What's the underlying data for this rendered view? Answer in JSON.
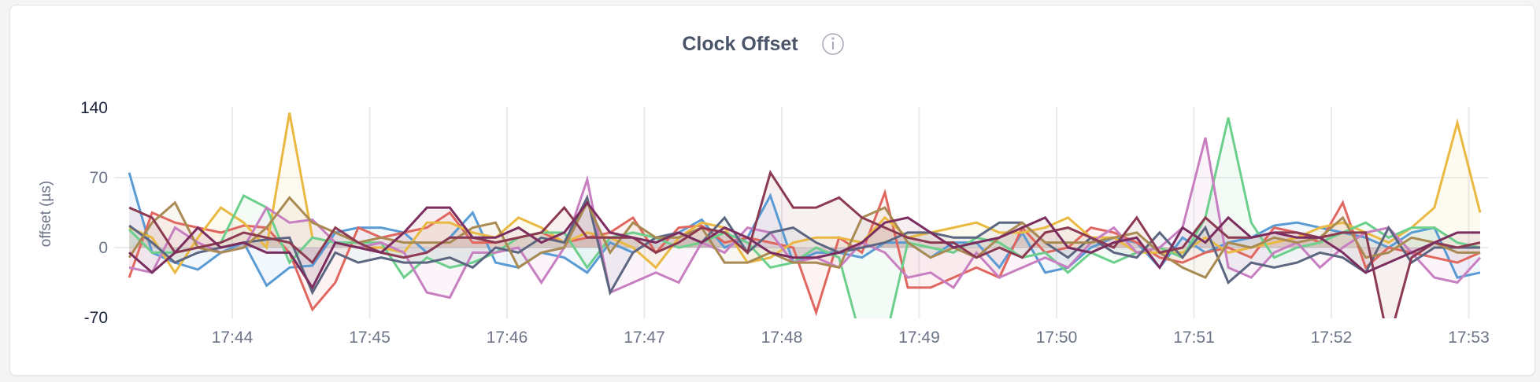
{
  "title": "Clock Offset",
  "info_icon": "info-circle-icon",
  "chart_data": {
    "type": "area",
    "title": "Clock Offset",
    "xlabel": "",
    "ylabel": "offset (µs)",
    "ylim": [
      -70,
      140
    ],
    "yticks": [
      "140",
      "70",
      "0",
      "-70"
    ],
    "xticks": [
      "17:44",
      "17:45",
      "17:46",
      "17:47",
      "17:48",
      "17:49",
      "17:50",
      "17:51",
      "17:52",
      "17:53"
    ],
    "grid": true,
    "legend": "none",
    "x": [
      "17:43:15",
      "17:43:25",
      "17:43:35",
      "17:43:45",
      "17:43:55",
      "17:44:05",
      "17:44:15",
      "17:44:25",
      "17:44:35",
      "17:44:45",
      "17:44:55",
      "17:45:05",
      "17:45:15",
      "17:45:25",
      "17:45:35",
      "17:45:45",
      "17:45:55",
      "17:46:05",
      "17:46:15",
      "17:46:25",
      "17:46:35",
      "17:46:45",
      "17:46:55",
      "17:47:05",
      "17:47:15",
      "17:47:25",
      "17:47:35",
      "17:47:45",
      "17:47:55",
      "17:48:05",
      "17:48:15",
      "17:48:25",
      "17:48:35",
      "17:48:45",
      "17:48:55",
      "17:49:05",
      "17:49:15",
      "17:49:25",
      "17:49:35",
      "17:49:45",
      "17:49:55",
      "17:50:05",
      "17:50:15",
      "17:50:25",
      "17:50:35",
      "17:50:45",
      "17:50:55",
      "17:51:05",
      "17:51:15",
      "17:51:25",
      "17:51:35",
      "17:51:45",
      "17:51:55",
      "17:52:05",
      "17:52:15",
      "17:52:25",
      "17:52:35",
      "17:52:45",
      "17:52:55",
      "17:53:05"
    ],
    "series": [
      {
        "color": "#5a9bd4",
        "values": [
          75,
          -5,
          -15,
          -22,
          -5,
          5,
          -38,
          -20,
          -18,
          15,
          20,
          20,
          15,
          -5,
          10,
          35,
          -15,
          -20,
          -5,
          -10,
          -25,
          5,
          -5,
          10,
          15,
          28,
          0,
          10,
          52,
          -15,
          -5,
          -5,
          -10,
          5,
          5,
          -10,
          5,
          5,
          -20,
          15,
          -25,
          -20,
          0,
          10,
          5,
          -20,
          10,
          -5,
          5,
          10,
          22,
          25,
          20,
          15,
          10,
          0,
          15,
          20,
          -30,
          -25
        ]
      },
      {
        "color": "#e0675f",
        "values": [
          -30,
          35,
          25,
          20,
          15,
          22,
          20,
          -5,
          -62,
          -35,
          20,
          10,
          15,
          20,
          35,
          5,
          5,
          10,
          15,
          5,
          10,
          15,
          30,
          -5,
          20,
          22,
          5,
          10,
          5,
          0,
          -65,
          10,
          -5,
          55,
          -40,
          -40,
          -30,
          -20,
          -30,
          20,
          -5,
          0,
          20,
          15,
          5,
          -10,
          -15,
          -5,
          0,
          -10,
          20,
          15,
          5,
          45,
          -20,
          0,
          -5,
          -10,
          -15,
          -5
        ]
      },
      {
        "color": "#e9b942",
        "values": [
          20,
          10,
          -25,
          10,
          40,
          25,
          0,
          135,
          10,
          5,
          0,
          0,
          -5,
          25,
          25,
          15,
          10,
          30,
          20,
          5,
          15,
          10,
          0,
          -20,
          10,
          25,
          20,
          -15,
          -10,
          5,
          10,
          10,
          5,
          30,
          10,
          15,
          20,
          25,
          15,
          15,
          20,
          30,
          10,
          10,
          -5,
          -5,
          -5,
          10,
          -5,
          0,
          5,
          10,
          20,
          25,
          15,
          5,
          20,
          40,
          125,
          35
        ]
      },
      {
        "color": "#6dcf8c",
        "values": [
          18,
          -5,
          -5,
          0,
          5,
          52,
          40,
          -15,
          10,
          5,
          5,
          5,
          -30,
          -10,
          -20,
          -15,
          -5,
          10,
          15,
          15,
          -20,
          10,
          15,
          10,
          0,
          5,
          15,
          5,
          -20,
          -15,
          0,
          -10,
          -95,
          -95,
          5,
          0,
          -5,
          10,
          5,
          -10,
          -5,
          -25,
          -5,
          -15,
          -5,
          0,
          -10,
          30,
          130,
          25,
          -10,
          0,
          5,
          15,
          25,
          10,
          20,
          20,
          5,
          0
        ]
      },
      {
        "color": "#c77fc1",
        "values": [
          -20,
          -25,
          20,
          5,
          -5,
          0,
          40,
          25,
          28,
          5,
          0,
          5,
          -5,
          -45,
          -50,
          -5,
          -5,
          0,
          -35,
          0,
          68,
          -45,
          -35,
          -25,
          -35,
          5,
          -5,
          20,
          15,
          -15,
          -10,
          -20,
          5,
          -5,
          -30,
          -25,
          -40,
          -5,
          -30,
          -20,
          -10,
          -20,
          5,
          20,
          -5,
          0,
          20,
          110,
          -20,
          -30,
          -5,
          5,
          -20,
          0,
          15,
          20,
          -5,
          -30,
          -35,
          -10
        ]
      },
      {
        "color": "#5c6680",
        "values": [
          22,
          5,
          -15,
          -5,
          0,
          5,
          8,
          10,
          -45,
          -5,
          -15,
          -10,
          -15,
          -15,
          -10,
          -20,
          0,
          -5,
          10,
          5,
          50,
          -45,
          -5,
          10,
          15,
          5,
          30,
          -5,
          15,
          20,
          5,
          -5,
          0,
          5,
          15,
          15,
          10,
          10,
          25,
          25,
          5,
          -10,
          10,
          -5,
          -10,
          15,
          -10,
          20,
          -35,
          -15,
          -20,
          -15,
          -5,
          -10,
          -25,
          20,
          -15,
          0,
          0,
          0
        ]
      },
      {
        "color": "#a98a52",
        "values": [
          -10,
          25,
          45,
          0,
          -5,
          0,
          20,
          50,
          25,
          15,
          5,
          10,
          5,
          5,
          5,
          20,
          25,
          -20,
          -5,
          0,
          45,
          -5,
          25,
          10,
          10,
          20,
          -15,
          -15,
          -5,
          -15,
          -15,
          -20,
          30,
          40,
          5,
          -10,
          0,
          -10,
          10,
          25,
          5,
          5,
          5,
          10,
          15,
          -5,
          -20,
          -30,
          5,
          0,
          10,
          5,
          10,
          30,
          -10,
          -5,
          10,
          5,
          -5,
          -5
        ]
      },
      {
        "color": "#8c3a52",
        "values": [
          40,
          30,
          -5,
          0,
          5,
          15,
          10,
          5,
          -15,
          20,
          5,
          -5,
          -10,
          -5,
          10,
          10,
          5,
          10,
          15,
          40,
          10,
          10,
          10,
          -5,
          5,
          20,
          15,
          -5,
          75,
          40,
          40,
          50,
          30,
          20,
          10,
          5,
          5,
          -10,
          0,
          -10,
          15,
          20,
          10,
          0,
          30,
          -5,
          0,
          30,
          10,
          10,
          15,
          15,
          10,
          15,
          15,
          -95,
          -10,
          5,
          0,
          5
        ]
      },
      {
        "color": "#7a2d5e",
        "values": [
          -5,
          -25,
          -5,
          20,
          0,
          5,
          -5,
          -5,
          -40,
          5,
          0,
          -5,
          15,
          40,
          40,
          10,
          10,
          20,
          5,
          15,
          45,
          15,
          10,
          5,
          15,
          5,
          20,
          10,
          -5,
          -10,
          -10,
          -5,
          5,
          25,
          30,
          15,
          0,
          5,
          10,
          20,
          30,
          0,
          -5,
          5,
          10,
          -20,
          20,
          5,
          30,
          10,
          15,
          10,
          10,
          -5,
          -25,
          -15,
          -5,
          5,
          15,
          15
        ]
      }
    ]
  }
}
